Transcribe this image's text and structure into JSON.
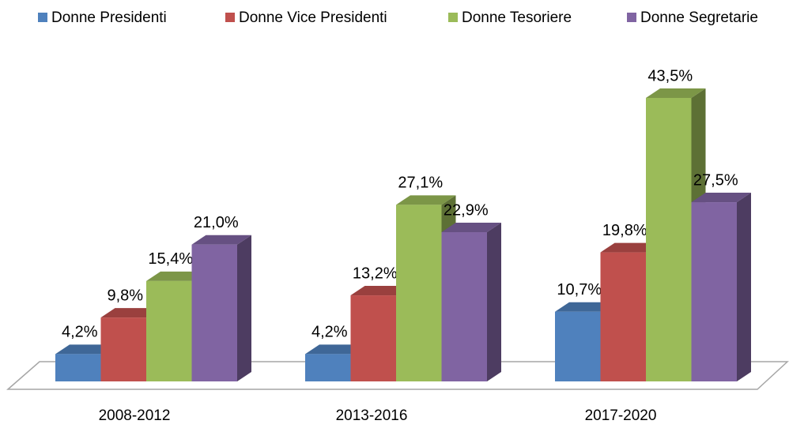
{
  "chart_data": {
    "type": "bar3d",
    "categories": [
      "2008-2012",
      "2013-2016",
      "2017-2020"
    ],
    "series": [
      {
        "name": "Donne Presidenti",
        "color": "#4f81bd",
        "values": [
          4.2,
          4.2,
          10.7
        ],
        "value_labels": [
          "4,2%",
          "4,2%",
          "10,7%"
        ]
      },
      {
        "name": "Donne Vice Presidenti",
        "color": "#c0504d",
        "values": [
          9.8,
          13.2,
          19.8
        ],
        "value_labels": [
          "9,8%",
          "13,2%",
          "19,8%"
        ]
      },
      {
        "name": "Donne Tesoriere",
        "color": "#9bbb59",
        "values": [
          15.4,
          27.1,
          43.5
        ],
        "value_labels": [
          "15,4%",
          "27,1%",
          "43,5%"
        ]
      },
      {
        "name": "Donne Segretarie",
        "color": "#8064a2",
        "values": [
          21.0,
          22.9,
          27.5
        ],
        "value_labels": [
          "21,0%",
          "22,9%",
          "27,5%"
        ]
      }
    ],
    "legend": "top"
  }
}
